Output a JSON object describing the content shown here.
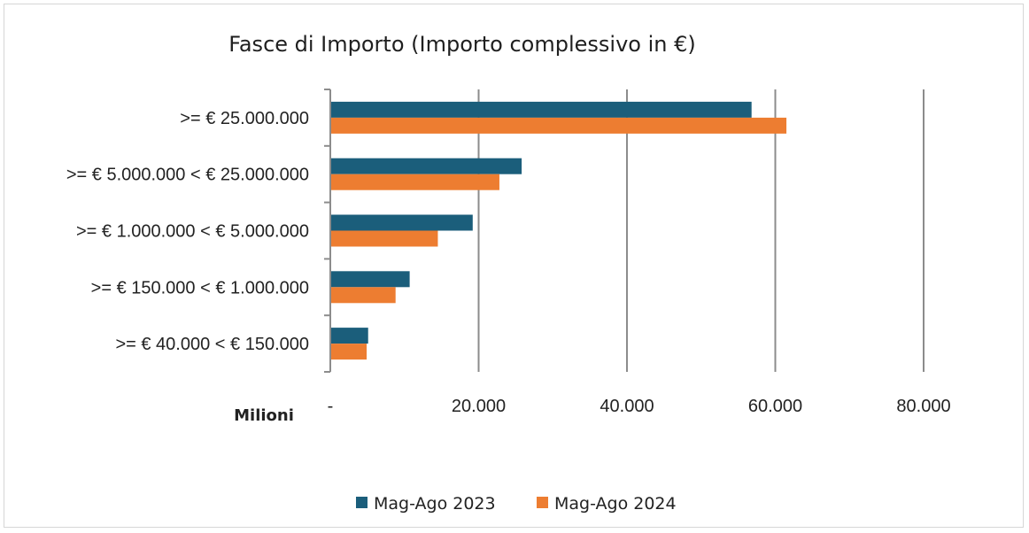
{
  "chart_data": {
    "type": "bar",
    "orientation": "horizontal",
    "title": "Fasce di Importo (Importo complessivo in €)",
    "unit_label": "Milioni",
    "categories": [
      ">= € 25.000.000",
      ">= € 5.000.000 < € 25.000.000",
      ">= € 1.000.000 < € 5.000.000",
      ">= € 150.000 < € 1.000.000",
      ">= € 40.000 < € 150.000"
    ],
    "series": [
      {
        "name": "Mag-Ago 2023",
        "color": "#1b5e7b",
        "values": [
          56800,
          25800,
          19200,
          10700,
          5100
        ]
      },
      {
        "name": "Mag-Ago 2024",
        "color": "#ed7d31",
        "values": [
          61500,
          22800,
          14500,
          8800,
          4900
        ]
      }
    ],
    "xlim": [
      0,
      80000
    ],
    "xticks": [
      0,
      20000,
      40000,
      60000,
      80000
    ],
    "xtick_labels": [
      "-",
      "20.000",
      "40.000",
      "60.000",
      "80.000"
    ],
    "grid": "vertical",
    "legend_position": "bottom"
  }
}
